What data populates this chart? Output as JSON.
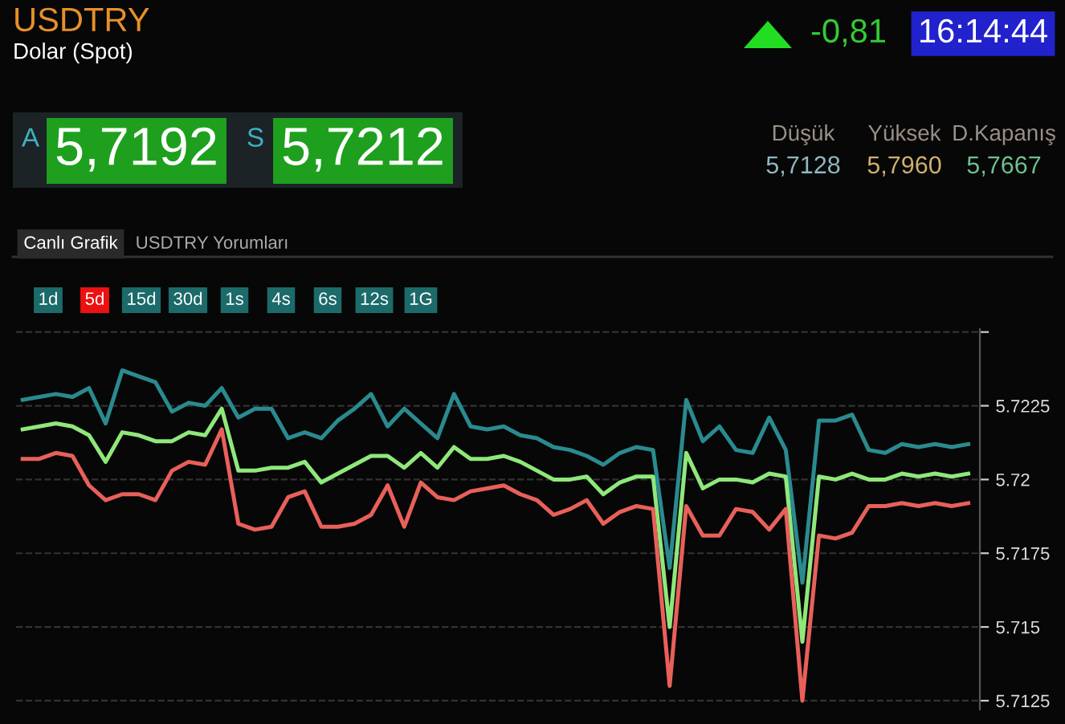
{
  "chart_data": {
    "type": "line",
    "title": "USDTRY",
    "subtitle": "Dolar (Spot)",
    "annotations": [
      "-0,81",
      "16:14:44",
      "A",
      "5,7192",
      "S",
      "5,7212",
      "Düşük",
      "5,7128",
      "Yüksek",
      "5,7960",
      "D.Kapanış",
      "5,7667",
      "Canlı Grafik",
      "USDTRY Yorumları",
      "1d",
      "5d",
      "15d",
      "30d",
      "1s",
      "4s",
      "6s",
      "12s",
      "1G"
    ],
    "categories": [
      null,
      null,
      null,
      null,
      null,
      null,
      null,
      null,
      null,
      null,
      null,
      null,
      null,
      null,
      null,
      null,
      null,
      null,
      null,
      null,
      null,
      null,
      null,
      null,
      null,
      null,
      null,
      null,
      null,
      null,
      null,
      null,
      null,
      null,
      null,
      null,
      null,
      null,
      null,
      null,
      null,
      null,
      null,
      null,
      null,
      null,
      null,
      null,
      null,
      null,
      null,
      null,
      null,
      null,
      null,
      null,
      null,
      null
    ],
    "series": [
      {
        "color": "#2a8a8f",
        "values": [
          5.7227,
          5.7228,
          5.7229,
          5.7228,
          5.7231,
          5.7219,
          5.7237,
          5.7235,
          5.7233,
          5.7223,
          5.7226,
          5.7225,
          5.7231,
          5.7221,
          5.7224,
          5.7224,
          5.7214,
          5.7216,
          5.7214,
          5.722,
          5.7224,
          5.7229,
          5.7218,
          5.7224,
          5.7219,
          5.7214,
          5.7229,
          5.7218,
          5.7217,
          5.7218,
          5.7215,
          5.7214,
          5.7211,
          5.721,
          5.7208,
          5.7205,
          5.7209,
          5.7211,
          5.721,
          5.717,
          5.7227,
          5.7213,
          5.7218,
          5.721,
          5.7209,
          5.7221,
          5.721,
          5.7165,
          5.722,
          5.722,
          5.7222,
          5.721,
          5.7209,
          5.7212,
          5.7211,
          5.7212,
          5.7211,
          5.7212
        ]
      },
      {
        "color": "#8fe87a",
        "values": [
          5.7217,
          5.7218,
          5.7219,
          5.7218,
          5.7215,
          5.7206,
          5.7216,
          5.7215,
          5.7213,
          5.7213,
          5.7216,
          5.7215,
          5.7224,
          5.7203,
          5.7203,
          5.7204,
          5.7204,
          5.7206,
          5.7199,
          5.7202,
          5.7205,
          5.7208,
          5.7208,
          5.7204,
          5.7209,
          5.7204,
          5.7211,
          5.7207,
          5.7207,
          5.7208,
          5.7206,
          5.7203,
          5.72,
          5.72,
          5.7201,
          5.7195,
          5.7199,
          5.7201,
          5.7201,
          5.715,
          5.7209,
          5.7197,
          5.72,
          5.72,
          5.7199,
          5.7202,
          5.7201,
          5.7145,
          5.7201,
          5.72,
          5.7202,
          5.72,
          5.72,
          5.7202,
          5.7201,
          5.7202,
          5.7201,
          5.7202
        ]
      },
      {
        "color": "#e8605a",
        "values": [
          5.7207,
          5.7207,
          5.7209,
          5.7208,
          5.7198,
          5.7193,
          5.7195,
          5.7195,
          5.7193,
          5.7203,
          5.7206,
          5.7205,
          5.7217,
          5.7185,
          5.7183,
          5.7184,
          5.7194,
          5.7196,
          5.7184,
          5.7184,
          5.7185,
          5.7188,
          5.7198,
          5.7184,
          5.7199,
          5.7194,
          5.7193,
          5.7196,
          5.7197,
          5.7198,
          5.7195,
          5.7193,
          5.7188,
          5.719,
          5.7193,
          5.7185,
          5.7189,
          5.7191,
          5.719,
          5.713,
          5.7191,
          5.7181,
          5.7181,
          5.719,
          5.7189,
          5.7183,
          5.719,
          5.7125,
          5.7181,
          5.718,
          5.7182,
          5.7191,
          5.7191,
          5.7192,
          5.7191,
          5.7192,
          5.7191,
          5.7192
        ]
      }
    ],
    "ylim": [
      5.7122,
      5.7251
    ],
    "yticks": [
      5.7125,
      5.715,
      5.7175,
      5.72,
      5.7225,
      {
        "value": 5.725,
        "label": null
      }
    ],
    "grid": "y",
    "marker": "none",
    "line_style": "solid"
  }
}
